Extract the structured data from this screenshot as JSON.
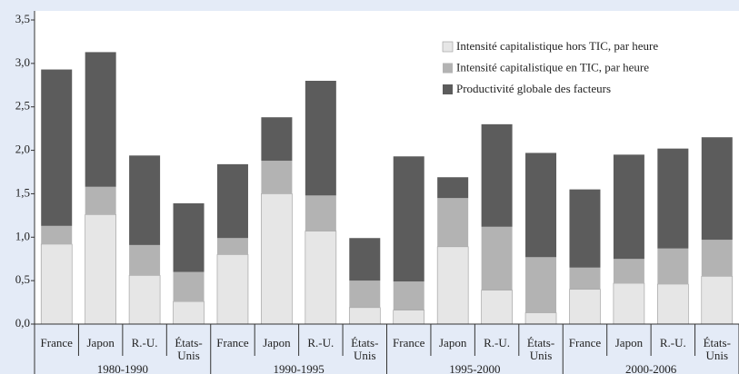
{
  "chart_data": {
    "type": "stacked-bar",
    "groups": [
      {
        "name": "1980-1990",
        "categories": [
          "France",
          "Japon",
          "R.-U.",
          "États-Unis"
        ]
      },
      {
        "name": "1990-1995",
        "categories": [
          "France",
          "Japon",
          "R.-U.",
          "États-Unis"
        ]
      },
      {
        "name": "1995-2000",
        "categories": [
          "France",
          "Japon",
          "R.-U.",
          "États-Unis"
        ]
      },
      {
        "name": "2000-2006",
        "categories": [
          "France",
          "Japon",
          "R.-U.",
          "États-Unis"
        ]
      }
    ],
    "series": [
      {
        "name": "Intensité capitalistique hors TIC, par heure",
        "color": "#e6e6e6",
        "values": [
          0.92,
          1.26,
          0.56,
          0.26,
          0.8,
          1.5,
          1.07,
          0.19,
          0.16,
          0.89,
          0.39,
          0.13,
          0.4,
          0.47,
          0.46,
          0.55
        ]
      },
      {
        "name": "Intensité capitalistique en TIC, par heure",
        "color": "#b3b3b3",
        "values": [
          0.21,
          0.32,
          0.35,
          0.34,
          0.19,
          0.38,
          0.41,
          0.31,
          0.33,
          0.56,
          0.73,
          0.64,
          0.25,
          0.28,
          0.41,
          0.42
        ]
      },
      {
        "name": "Productivité globale des facteurs",
        "color": "#5c5c5c",
        "values": [
          1.8,
          1.55,
          1.03,
          0.79,
          0.85,
          0.5,
          1.32,
          0.49,
          1.44,
          0.24,
          1.18,
          1.2,
          0.9,
          1.2,
          1.15,
          1.18
        ]
      }
    ],
    "ylim": [
      0,
      3.5
    ],
    "yticks": [
      {
        "value": 0,
        "label": "0,0"
      },
      {
        "value": 0.5,
        "label": "0,5"
      },
      {
        "value": 1,
        "label": "1,0"
      },
      {
        "value": 1.5,
        "label": "1,5"
      },
      {
        "value": 2,
        "label": "2,0"
      },
      {
        "value": 2.5,
        "label": "2,5"
      },
      {
        "value": 3,
        "label": "3,0"
      },
      {
        "value": 3.5,
        "label": "3,5"
      }
    ],
    "legend": "top-right"
  }
}
